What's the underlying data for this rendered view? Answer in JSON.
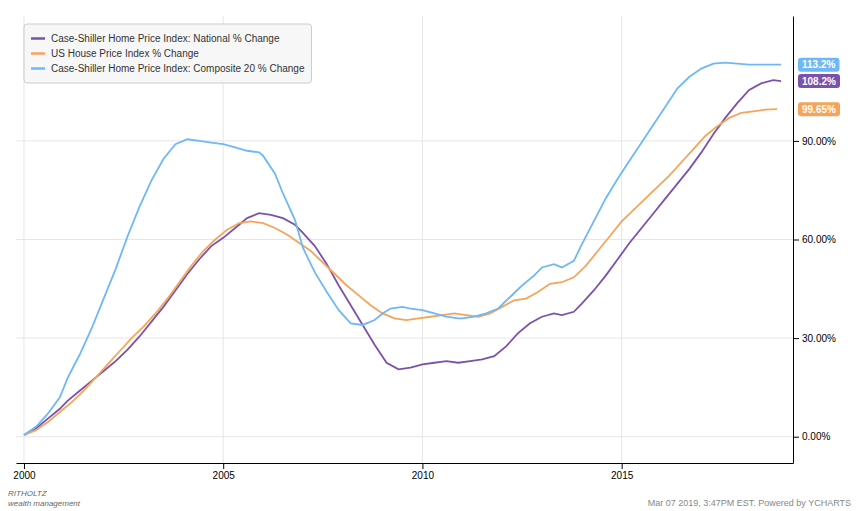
{
  "chart_data": {
    "type": "line",
    "series": [
      {
        "name": "Case-Shiller Home Price Index: National % Change",
        "color": "#7b52ab",
        "x": [
          2000.0,
          2000.3,
          2000.6,
          2000.9,
          2001.1,
          2001.4,
          2001.7,
          2002.0,
          2002.3,
          2002.6,
          2002.9,
          2003.2,
          2003.5,
          2003.8,
          2004.1,
          2004.4,
          2004.7,
          2005.0,
          2005.3,
          2005.6,
          2005.9,
          2006.2,
          2006.5,
          2006.8,
          2007.0,
          2007.3,
          2007.6,
          2007.9,
          2008.2,
          2008.5,
          2008.8,
          2009.1,
          2009.4,
          2009.7,
          2010.0,
          2010.3,
          2010.6,
          2010.9,
          2011.2,
          2011.5,
          2011.8,
          2012.1,
          2012.4,
          2012.7,
          2013.0,
          2013.3,
          2013.5,
          2013.8,
          2014.0,
          2014.3,
          2014.6,
          2014.9,
          2015.2,
          2015.5,
          2015.8,
          2016.1,
          2016.4,
          2016.7,
          2017.0,
          2017.3,
          2017.6,
          2017.9,
          2018.2,
          2018.5,
          2018.8,
          2019.0
        ],
        "values": [
          0.5,
          2.5,
          5.5,
          8.5,
          11.0,
          14.0,
          17.0,
          20.0,
          23.0,
          26.5,
          30.5,
          35.0,
          39.5,
          44.5,
          49.5,
          54.0,
          58.0,
          60.5,
          63.5,
          66.5,
          68.0,
          67.5,
          66.5,
          64.5,
          62.0,
          58.0,
          52.5,
          46.0,
          40.0,
          34.0,
          28.0,
          22.5,
          20.5,
          21.0,
          22.0,
          22.5,
          23.0,
          22.5,
          23.0,
          23.5,
          24.5,
          27.5,
          31.5,
          34.5,
          36.5,
          37.5,
          37.0,
          38.0,
          40.5,
          44.5,
          49.0,
          54.0,
          59.0,
          63.5,
          68.0,
          72.5,
          77.0,
          81.5,
          86.5,
          92.0,
          97.0,
          101.5,
          105.5,
          107.5,
          108.5,
          108.2
        ]
      },
      {
        "name": "US House Price Index % Change",
        "color": "#f5a55a",
        "x": [
          2000.0,
          2000.3,
          2000.6,
          2000.9,
          2001.2,
          2001.5,
          2001.8,
          2002.1,
          2002.4,
          2002.7,
          2003.0,
          2003.3,
          2003.6,
          2003.9,
          2004.2,
          2004.5,
          2004.8,
          2005.1,
          2005.4,
          2005.7,
          2006.0,
          2006.3,
          2006.6,
          2006.9,
          2007.2,
          2007.5,
          2007.8,
          2008.1,
          2008.4,
          2008.7,
          2009.0,
          2009.3,
          2009.6,
          2009.9,
          2010.2,
          2010.5,
          2010.8,
          2011.1,
          2011.4,
          2011.7,
          2012.0,
          2012.3,
          2012.6,
          2012.9,
          2013.2,
          2013.5,
          2013.8,
          2014.1,
          2014.4,
          2014.7,
          2015.0,
          2015.3,
          2015.6,
          2015.9,
          2016.2,
          2016.5,
          2016.8,
          2017.1,
          2017.4,
          2017.7,
          2018.0,
          2018.3,
          2018.6,
          2018.9
        ],
        "values": [
          0.5,
          2.0,
          4.5,
          7.5,
          10.5,
          14.0,
          18.0,
          22.0,
          26.0,
          30.0,
          33.5,
          37.5,
          42.0,
          47.0,
          52.0,
          56.5,
          60.0,
          63.0,
          65.0,
          65.5,
          65.0,
          63.5,
          61.5,
          59.0,
          56.5,
          53.0,
          49.5,
          46.0,
          43.0,
          40.0,
          37.5,
          36.0,
          35.5,
          36.0,
          36.5,
          37.0,
          37.5,
          37.0,
          36.5,
          37.5,
          39.5,
          41.5,
          42.0,
          44.0,
          46.5,
          47.0,
          48.5,
          52.0,
          56.5,
          61.0,
          65.5,
          69.0,
          72.5,
          76.0,
          79.5,
          83.5,
          87.5,
          91.5,
          94.5,
          97.0,
          98.5,
          99.0,
          99.5,
          99.65
        ]
      },
      {
        "name": "Case-Shiller Home Price Index: Composite 20 % Change",
        "color": "#6eb8f7",
        "x": [
          2000.0,
          2000.3,
          2000.6,
          2000.9,
          2001.1,
          2001.4,
          2001.7,
          2002.0,
          2002.3,
          2002.6,
          2002.9,
          2003.2,
          2003.5,
          2003.8,
          2004.1,
          2004.4,
          2004.7,
          2005.0,
          2005.3,
          2005.6,
          2005.9,
          2006.0,
          2006.3,
          2006.5,
          2006.8,
          2007.0,
          2007.3,
          2007.6,
          2007.9,
          2008.2,
          2008.5,
          2008.8,
          2009.0,
          2009.2,
          2009.5,
          2009.7,
          2010.0,
          2010.3,
          2010.6,
          2010.9,
          2011.0,
          2011.3,
          2011.6,
          2011.9,
          2012.2,
          2012.5,
          2012.8,
          2013.0,
          2013.3,
          2013.5,
          2013.8,
          2014.0,
          2014.3,
          2014.6,
          2014.9,
          2015.2,
          2015.5,
          2015.8,
          2016.1,
          2016.4,
          2016.7,
          2017.0,
          2017.3,
          2017.6,
          2017.9,
          2018.2,
          2018.5,
          2018.8,
          2019.0
        ],
        "values": [
          0.5,
          3.0,
          7.0,
          12.0,
          18.0,
          25.0,
          33.0,
          42.0,
          51.0,
          61.0,
          70.0,
          78.0,
          84.5,
          89.0,
          90.5,
          90.0,
          89.5,
          89.0,
          88.0,
          87.0,
          86.5,
          85.5,
          80.0,
          74.0,
          66.0,
          57.5,
          50.0,
          44.0,
          38.5,
          34.5,
          34.0,
          35.5,
          37.5,
          39.0,
          39.5,
          39.0,
          38.5,
          37.5,
          36.5,
          36.0,
          36.0,
          36.5,
          37.5,
          39.0,
          42.5,
          46.0,
          49.0,
          51.5,
          52.5,
          51.5,
          53.5,
          58.5,
          65.5,
          72.5,
          78.5,
          84.0,
          89.5,
          95.0,
          100.5,
          106.0,
          109.5,
          112.0,
          113.5,
          113.8,
          113.5,
          113.2,
          113.2,
          113.2,
          113.2
        ]
      }
    ],
    "xlim": [
      1999.8,
      2019.3
    ],
    "xticks": [
      2000,
      2005,
      2010,
      2015
    ],
    "ylim": [
      -8,
      128
    ],
    "yticks": [
      {
        "value": 0,
        "label": "0.00%"
      },
      {
        "value": 30,
        "label": "30.00%"
      },
      {
        "value": 60,
        "label": "60.00%"
      },
      {
        "value": 90,
        "label": "90.00%"
      }
    ],
    "grid": true,
    "legend": "upper left",
    "annotations": [
      {
        "text": "113.2%",
        "y": 113.2,
        "color": "#6eb8f7"
      },
      {
        "text": "108.2%",
        "y": 108.2,
        "color": "#7b52ab"
      },
      {
        "text": "99.65%",
        "y": 99.65,
        "color": "#f5a55a"
      },
      {
        "text": "RITHOLTZ\nwealth management"
      },
      {
        "text": "Mar 07 2019, 3:47PM EST.  Powered by YCHARTS"
      }
    ]
  }
}
